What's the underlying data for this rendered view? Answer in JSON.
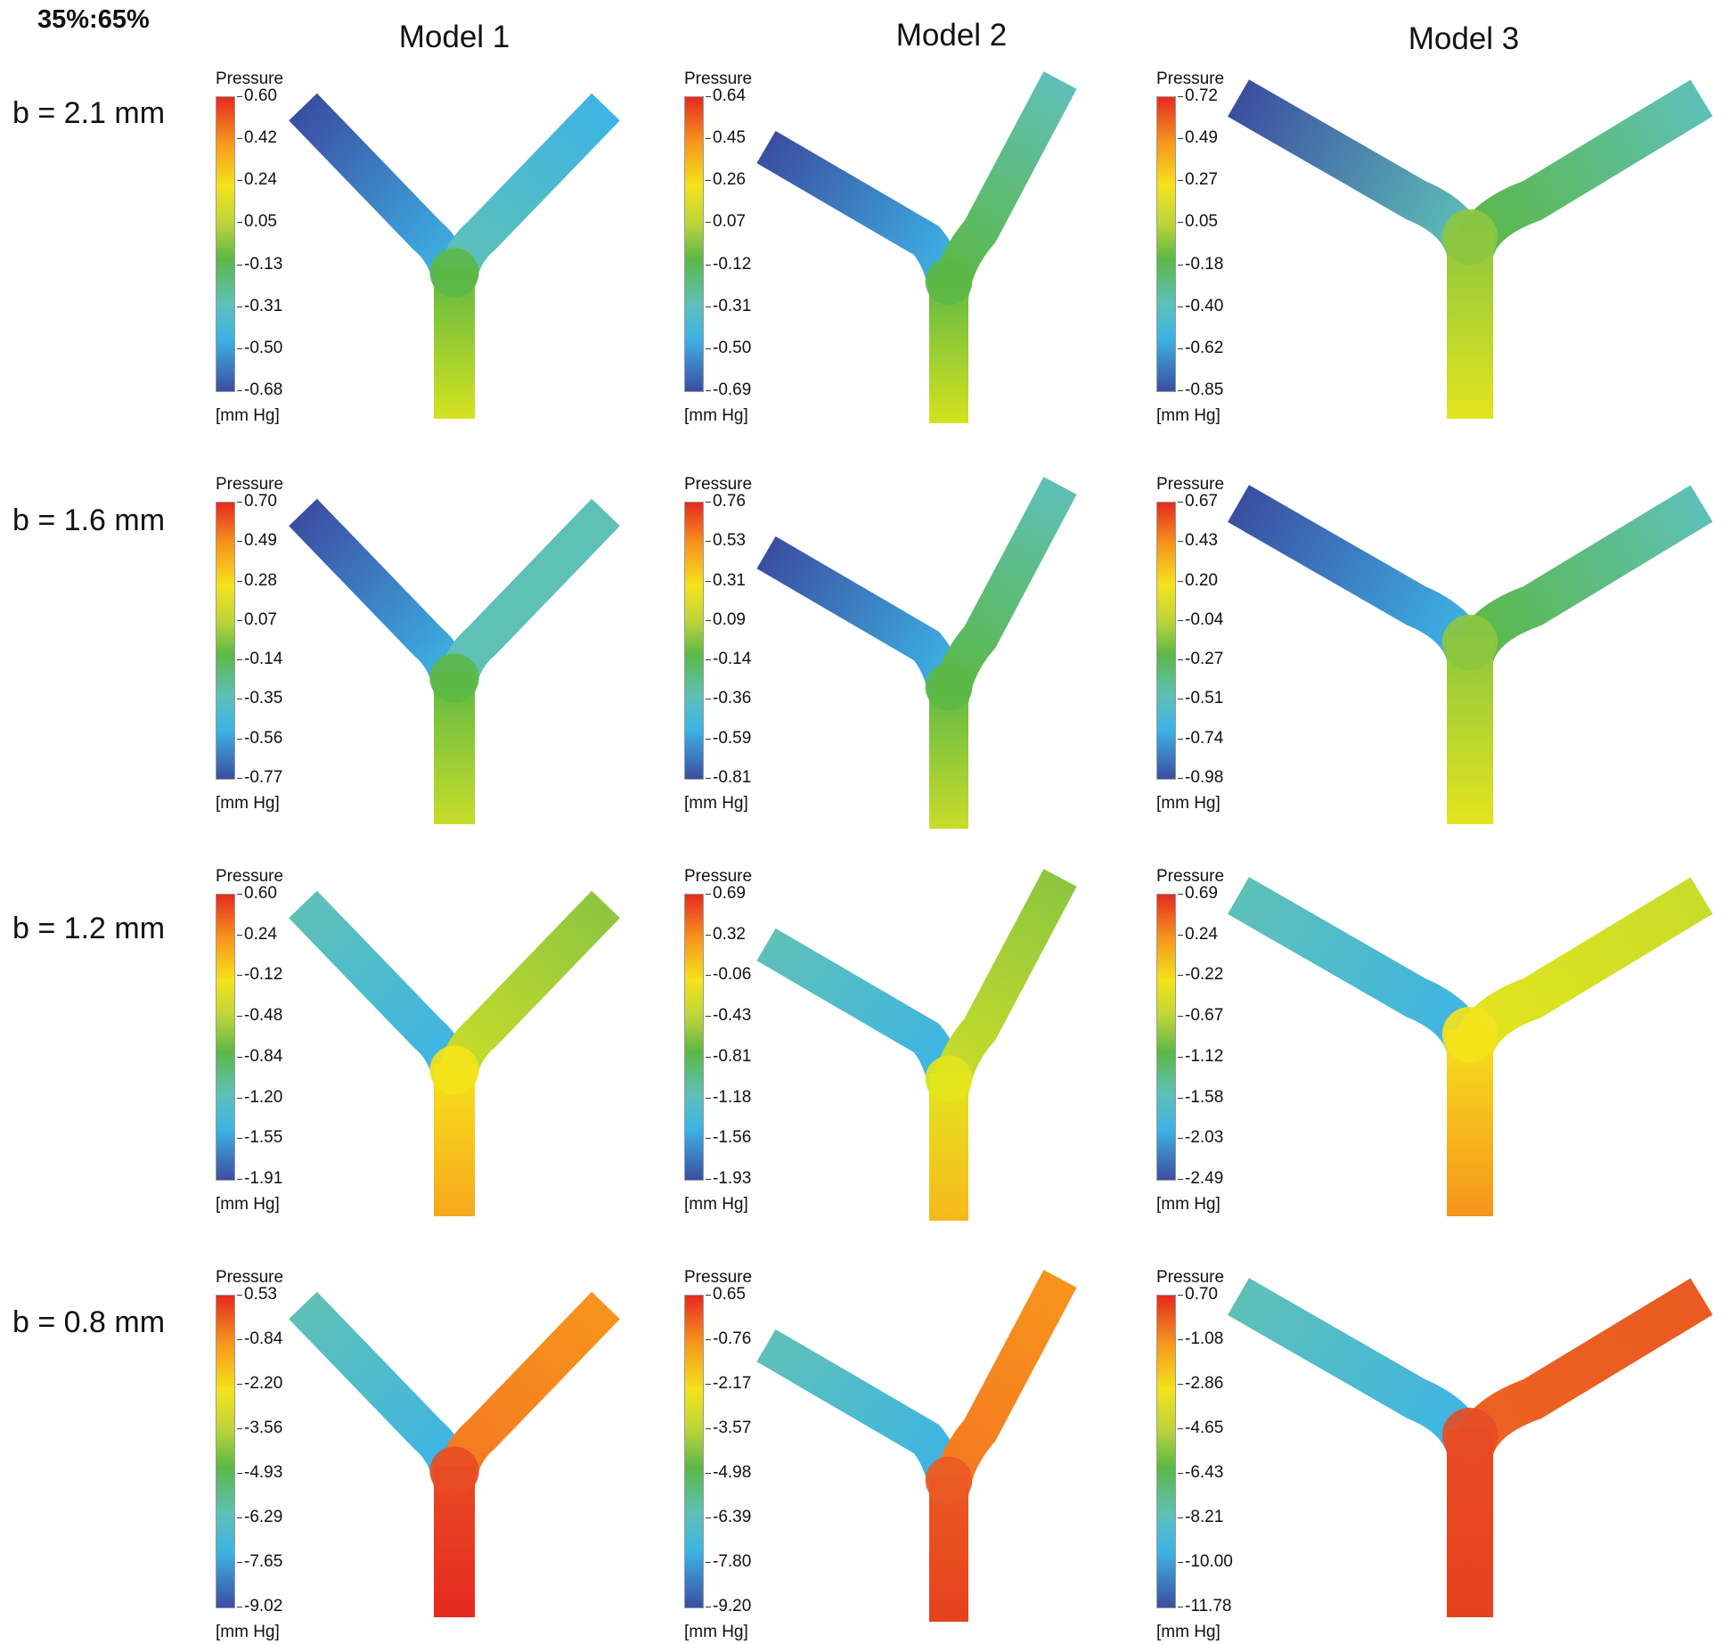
{
  "top_label": "35%:65%",
  "columns": [
    "Model 1",
    "Model 2",
    "Model 3"
  ],
  "rows": [
    {
      "label": "b = 2.1 mm",
      "panels": [
        {
          "legend": {
            "title": "Pressure",
            "unit": "[mm Hg]",
            "ticks": [
              "0.60",
              "0.42",
              "0.24",
              "0.05",
              "-0.13",
              "-0.31",
              "-0.50",
              "-0.68"
            ]
          },
          "colors": {
            "left_inlet": "#3b4ea1",
            "left_mid": "#3db4e5",
            "right_inlet": "#3db4e5",
            "right_mid": "#5ec0b7",
            "junction": "#5cb846",
            "trunk_top": "#5cb846",
            "trunk_bottom": "#d4e21f"
          }
        },
        {
          "legend": {
            "title": "Pressure",
            "unit": "[mm Hg]",
            "ticks": [
              "0.64",
              "0.45",
              "0.26",
              "0.07",
              "-0.12",
              "-0.31",
              "-0.50",
              "-0.69"
            ]
          },
          "colors": {
            "left_inlet": "#3b4ea1",
            "left_mid": "#3db4e5",
            "right_inlet": "#5ec0b7",
            "right_mid": "#5cb846",
            "junction": "#5cb846",
            "trunk_top": "#5cb846",
            "trunk_bottom": "#d4e21f"
          }
        },
        {
          "legend": {
            "title": "Pressure",
            "unit": "[mm Hg]",
            "ticks": [
              "0.72",
              "0.49",
              "0.27",
              "0.05",
              "-0.18",
              "-0.40",
              "-0.62",
              "-0.85"
            ]
          },
          "colors": {
            "left_inlet": "#3b4ea1",
            "left_mid": "#5ec0b7",
            "right_inlet": "#5ec0b7",
            "right_mid": "#5cb846",
            "junction": "#8cc63f",
            "trunk_top": "#8cc63f",
            "trunk_bottom": "#e3e51d"
          }
        }
      ]
    },
    {
      "label": "b = 1.6 mm",
      "panels": [
        {
          "legend": {
            "title": "Pressure",
            "unit": "[mm Hg]",
            "ticks": [
              "0.70",
              "0.49",
              "0.28",
              "0.07",
              "-0.14",
              "-0.35",
              "-0.56",
              "-0.77"
            ]
          },
          "colors": {
            "left_inlet": "#3b4ea1",
            "left_mid": "#3db4e5",
            "right_inlet": "#5ec0b7",
            "right_mid": "#5ec0b7",
            "junction": "#5cb846",
            "trunk_top": "#5cb846",
            "trunk_bottom": "#c8dc2a"
          }
        },
        {
          "legend": {
            "title": "Pressure",
            "unit": "[mm Hg]",
            "ticks": [
              "0.76",
              "0.53",
              "0.31",
              "0.09",
              "-0.14",
              "-0.36",
              "-0.59",
              "-0.81"
            ]
          },
          "colors": {
            "left_inlet": "#3b4ea1",
            "left_mid": "#3db4e5",
            "right_inlet": "#5ec0b7",
            "right_mid": "#5cb846",
            "junction": "#5cb846",
            "trunk_top": "#5cb846",
            "trunk_bottom": "#c8dc2a"
          }
        },
        {
          "legend": {
            "title": "Pressure",
            "unit": "[mm Hg]",
            "ticks": [
              "0.67",
              "0.43",
              "0.20",
              "-0.04",
              "-0.27",
              "-0.51",
              "-0.74",
              "-0.98"
            ]
          },
          "colors": {
            "left_inlet": "#3b4ea1",
            "left_mid": "#3db4e5",
            "right_inlet": "#5ec0b7",
            "right_mid": "#5cb846",
            "junction": "#8cc63f",
            "trunk_top": "#8cc63f",
            "trunk_bottom": "#e3e51d"
          }
        }
      ]
    },
    {
      "label": "b = 1.2 mm",
      "panels": [
        {
          "legend": {
            "title": "Pressure",
            "unit": "[mm Hg]",
            "ticks": [
              "0.60",
              "0.24",
              "-0.12",
              "-0.48",
              "-0.84",
              "-1.20",
              "-1.55",
              "-1.91"
            ]
          },
          "colors": {
            "left_inlet": "#5ec0b7",
            "left_mid": "#3db4e5",
            "right_inlet": "#8cc63f",
            "right_mid": "#c8dc2a",
            "junction": "#f5e31b",
            "trunk_top": "#f5e31b",
            "trunk_bottom": "#f7a81d"
          }
        },
        {
          "legend": {
            "title": "Pressure",
            "unit": "[mm Hg]",
            "ticks": [
              "0.69",
              "0.32",
              "-0.06",
              "-0.43",
              "-0.81",
              "-1.18",
              "-1.56",
              "-1.93"
            ]
          },
          "colors": {
            "left_inlet": "#5ec0b7",
            "left_mid": "#3db4e5",
            "right_inlet": "#8cc63f",
            "right_mid": "#c8dc2a",
            "junction": "#e3e51d",
            "trunk_top": "#e3e51d",
            "trunk_bottom": "#f7b81d"
          }
        },
        {
          "legend": {
            "title": "Pressure",
            "unit": "[mm Hg]",
            "ticks": [
              "0.69",
              "0.24",
              "-0.22",
              "-0.67",
              "-1.12",
              "-1.58",
              "-2.03",
              "-2.49"
            ]
          },
          "colors": {
            "left_inlet": "#5ec0b7",
            "left_mid": "#3db4e5",
            "right_inlet": "#c8dc2a",
            "right_mid": "#e3e51d",
            "junction": "#f5e31b",
            "trunk_top": "#f5e31b",
            "trunk_bottom": "#f7941d"
          }
        }
      ]
    },
    {
      "label": "b = 0.8 mm",
      "panels": [
        {
          "legend": {
            "title": "Pressure",
            "unit": "[mm Hg]",
            "ticks": [
              "0.53",
              "-0.84",
              "-2.20",
              "-3.56",
              "-4.93",
              "-6.29",
              "-7.65",
              "-9.02"
            ]
          },
          "colors": {
            "left_inlet": "#5ec0b7",
            "left_mid": "#3db4e5",
            "right_inlet": "#f7941d",
            "right_mid": "#f47a20",
            "junction": "#e84b23",
            "trunk_top": "#e84b23",
            "trunk_bottom": "#e52a1f"
          }
        },
        {
          "legend": {
            "title": "Pressure",
            "unit": "[mm Hg]",
            "ticks": [
              "0.65",
              "-0.76",
              "-2.17",
              "-3.57",
              "-4.98",
              "-6.39",
              "-7.80",
              "-9.20"
            ]
          },
          "colors": {
            "left_inlet": "#5ec0b7",
            "left_mid": "#3db4e5",
            "right_inlet": "#f7941d",
            "right_mid": "#f47a20",
            "junction": "#ea5a22",
            "trunk_top": "#ea5a22",
            "trunk_bottom": "#e6411f"
          }
        },
        {
          "legend": {
            "title": "Pressure",
            "unit": "[mm Hg]",
            "ticks": [
              "0.70",
              "-1.08",
              "-2.86",
              "-4.65",
              "-6.43",
              "-8.21",
              "-10.00",
              "-11.78"
            ]
          },
          "colors": {
            "left_inlet": "#5ec0b7",
            "left_mid": "#3db4e5",
            "right_inlet": "#ea5a22",
            "right_mid": "#ec6322",
            "junction": "#e84b23",
            "trunk_top": "#e84b23",
            "trunk_bottom": "#e6411f"
          }
        }
      ]
    }
  ]
}
